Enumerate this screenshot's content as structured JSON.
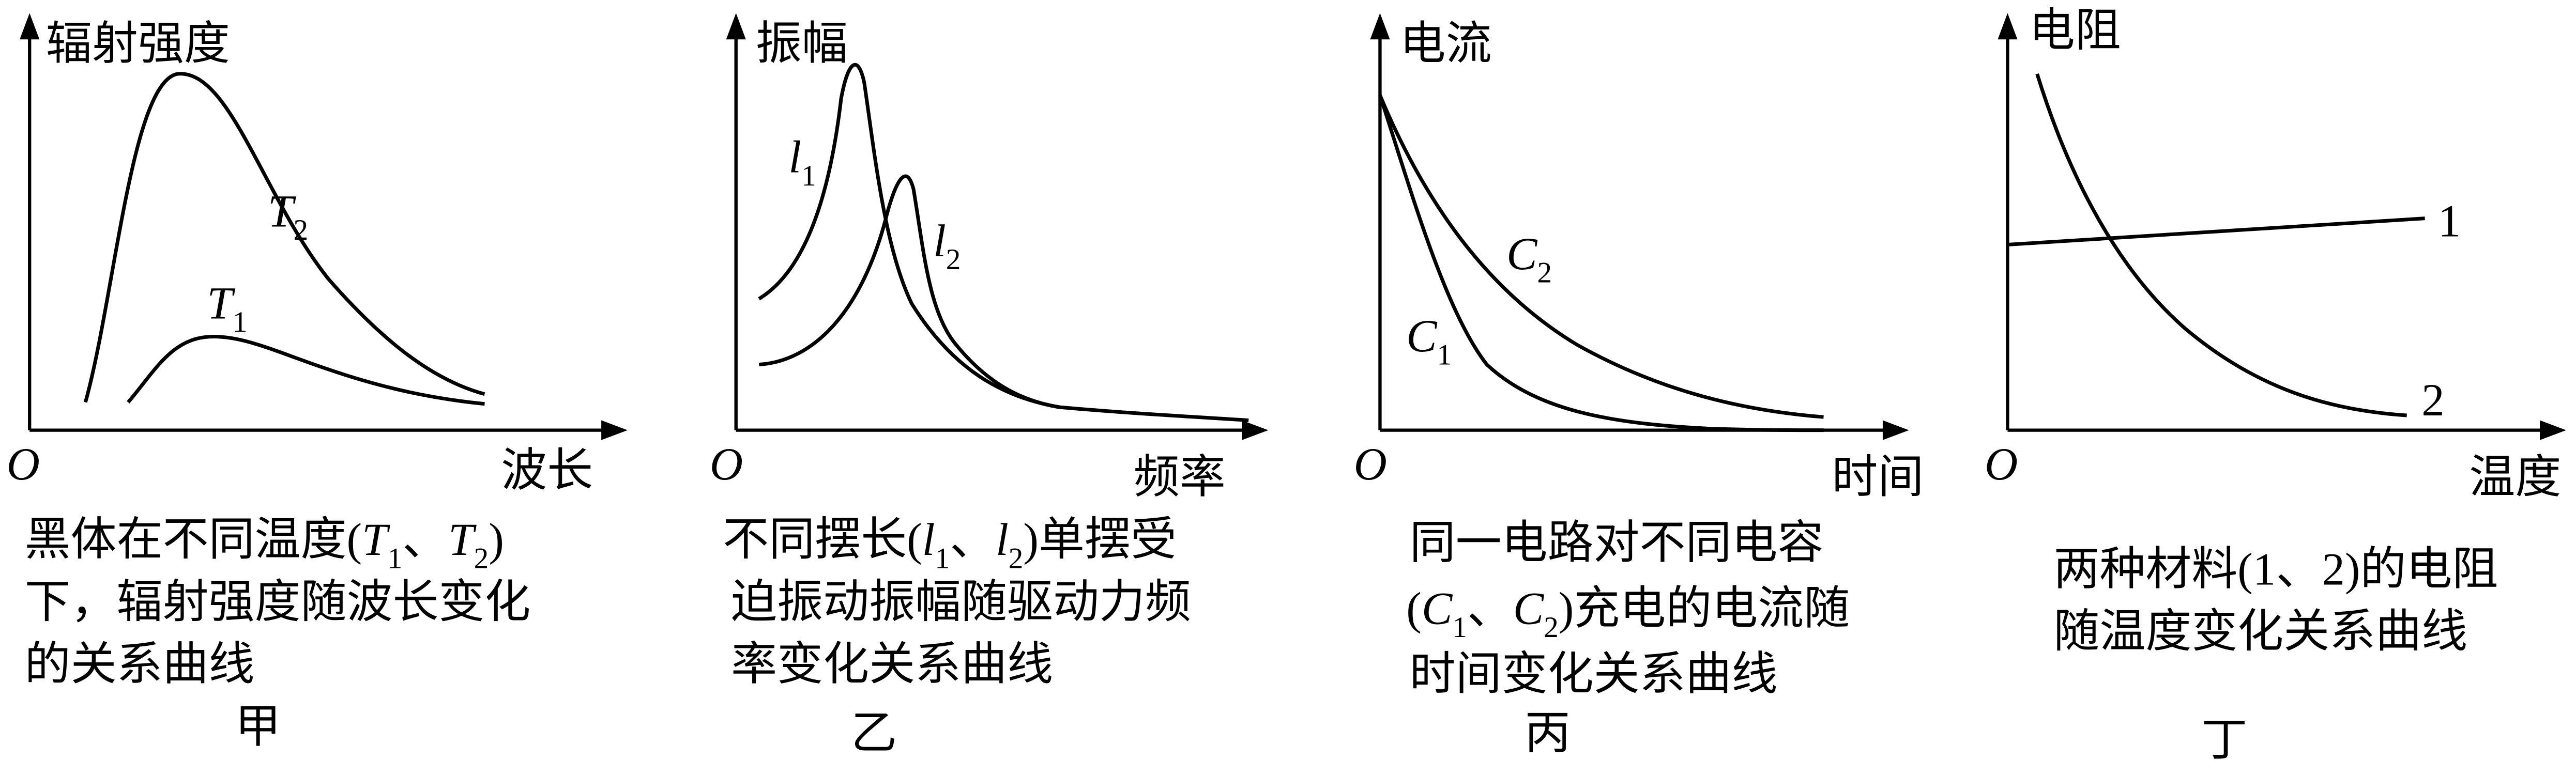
{
  "panels": [
    {
      "y_axis": "辐射强度",
      "x_axis": "波长",
      "origin": "O",
      "curves": [
        {
          "symbol": "T",
          "subscript": "2"
        },
        {
          "symbol": "T",
          "subscript": "1"
        }
      ],
      "caption": [
        [
          "黑体在不同温度(",
          "T",
          "1",
          "、",
          "T",
          "2",
          ")"
        ],
        [
          "下，辐射强度随波长变化"
        ],
        [
          "的关系曲线"
        ]
      ],
      "label": "甲"
    },
    {
      "y_axis": "振幅",
      "x_axis": "频率",
      "origin": "O",
      "curves": [
        {
          "symbol": "l",
          "subscript": "1"
        },
        {
          "symbol": "l",
          "subscript": "2"
        }
      ],
      "caption": [
        [
          "不同摆长(",
          "l",
          "1",
          "、",
          "l",
          "2",
          ")单摆受"
        ],
        [
          "迫振动振幅随驱动力频"
        ],
        [
          "率变化关系曲线"
        ]
      ],
      "label": "乙"
    },
    {
      "y_axis": "电流",
      "x_axis": "时间",
      "origin": "O",
      "curves": [
        {
          "symbol": "C",
          "subscript": "2"
        },
        {
          "symbol": "C",
          "subscript": "1"
        }
      ],
      "caption": [
        [
          "同一电路对不同电容"
        ],
        [
          "(",
          "C",
          "1",
          "、",
          "C",
          "2",
          ")充电的电流随"
        ],
        [
          "时间变化关系曲线"
        ]
      ],
      "label": "丙"
    },
    {
      "y_axis": "电阻",
      "x_axis": "温度",
      "origin": "O",
      "curves": [
        {
          "symbol": "1"
        },
        {
          "symbol": "2"
        }
      ],
      "caption": [
        [
          "两种材料(1、2)的电阻"
        ],
        [
          "随温度变化关系曲线"
        ]
      ],
      "label": "丁"
    }
  ]
}
